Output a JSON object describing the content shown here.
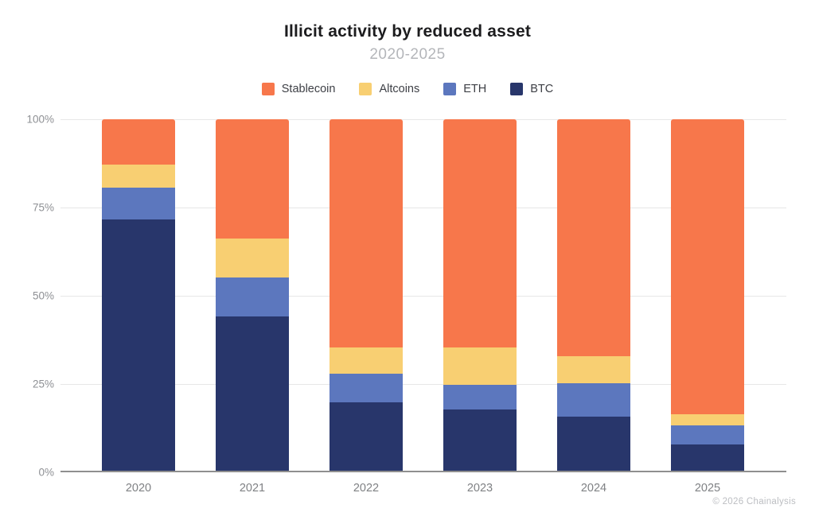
{
  "header": {
    "title": "Illicit activity by reduced asset",
    "subtitle": "2020-2025"
  },
  "legend": [
    {
      "label": "Stablecoin",
      "color": "#F7774B"
    },
    {
      "label": "Altcoins",
      "color": "#F8CF72"
    },
    {
      "label": "ETH",
      "color": "#5C77BE"
    },
    {
      "label": "BTC",
      "color": "#28366B"
    }
  ],
  "chart_data": {
    "type": "bar",
    "stacked": true,
    "normalized_to_100_percent": true,
    "title": "Illicit activity by reduced asset",
    "subtitle": "2020-2025",
    "categories": [
      "2020",
      "2021",
      "2022",
      "2023",
      "2024",
      "2025"
    ],
    "stack_order_bottom_to_top": [
      "BTC",
      "ETH",
      "Altcoins",
      "Stablecoin"
    ],
    "series": [
      {
        "name": "BTC",
        "color": "#28366B",
        "values": [
          71.5,
          44.0,
          19.5,
          17.5,
          15.5,
          7.5
        ]
      },
      {
        "name": "ETH",
        "color": "#5C77BE",
        "values": [
          9.0,
          11.0,
          8.0,
          7.0,
          9.5,
          5.5
        ]
      },
      {
        "name": "Altcoins",
        "color": "#F8CF72",
        "values": [
          6.5,
          11.0,
          7.5,
          10.5,
          7.5,
          3.0
        ]
      },
      {
        "name": "Stablecoin",
        "color": "#F7774B",
        "values": [
          13.0,
          34.0,
          65.0,
          65.0,
          67.5,
          84.0
        ]
      }
    ],
    "xlabel": "",
    "ylabel": "",
    "ylim": [
      0,
      100
    ],
    "yticks_bottom_to_top": [
      "0%",
      "25%",
      "50%",
      "75%",
      "100%"
    ],
    "grid": true,
    "legend_position": "top"
  },
  "footer": {
    "text": "© 2026 Chainalysis"
  }
}
